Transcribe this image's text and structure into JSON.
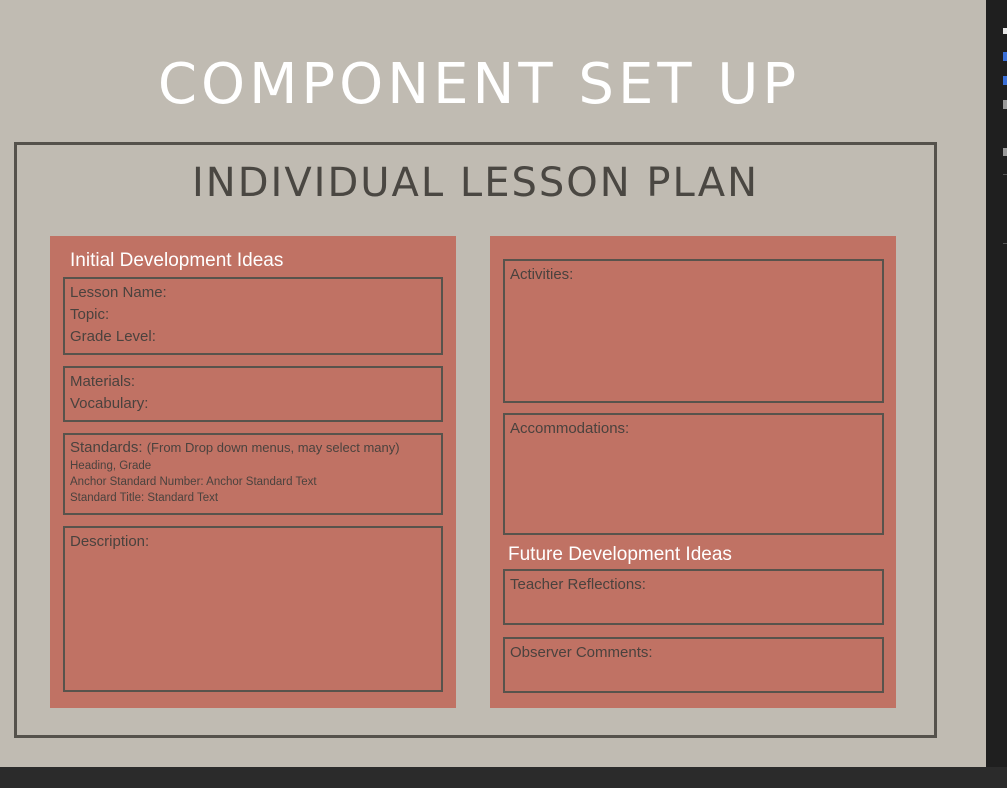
{
  "slide": {
    "title": "COMPONENT SET UP",
    "frame_title": "INDIVIDUAL LESSON PLAN"
  },
  "left_panel": {
    "heading": "Initial Development Ideas",
    "basics": [
      "Lesson Name:",
      "Topic:",
      "Grade Level:"
    ],
    "materials": [
      "Materials:",
      "Vocabulary:"
    ],
    "standards": {
      "label": "Standards:",
      "hint": "(From Drop down menus, may select many)",
      "lines": [
        "Heading, Grade",
        "Anchor Standard Number: Anchor Standard Text",
        "Standard Title: Standard Text"
      ]
    },
    "description": "Description:"
  },
  "right_panel": {
    "activities": "Activities:",
    "accommodations": "Accommodations:",
    "future_heading": "Future Development Ideas",
    "teacher_reflections": "Teacher Reflections:",
    "observer_comments": "Observer Comments:"
  },
  "colors": {
    "slide_bg": "#c0bbb2",
    "panel": "#c07264",
    "frame_border": "#55524c"
  }
}
